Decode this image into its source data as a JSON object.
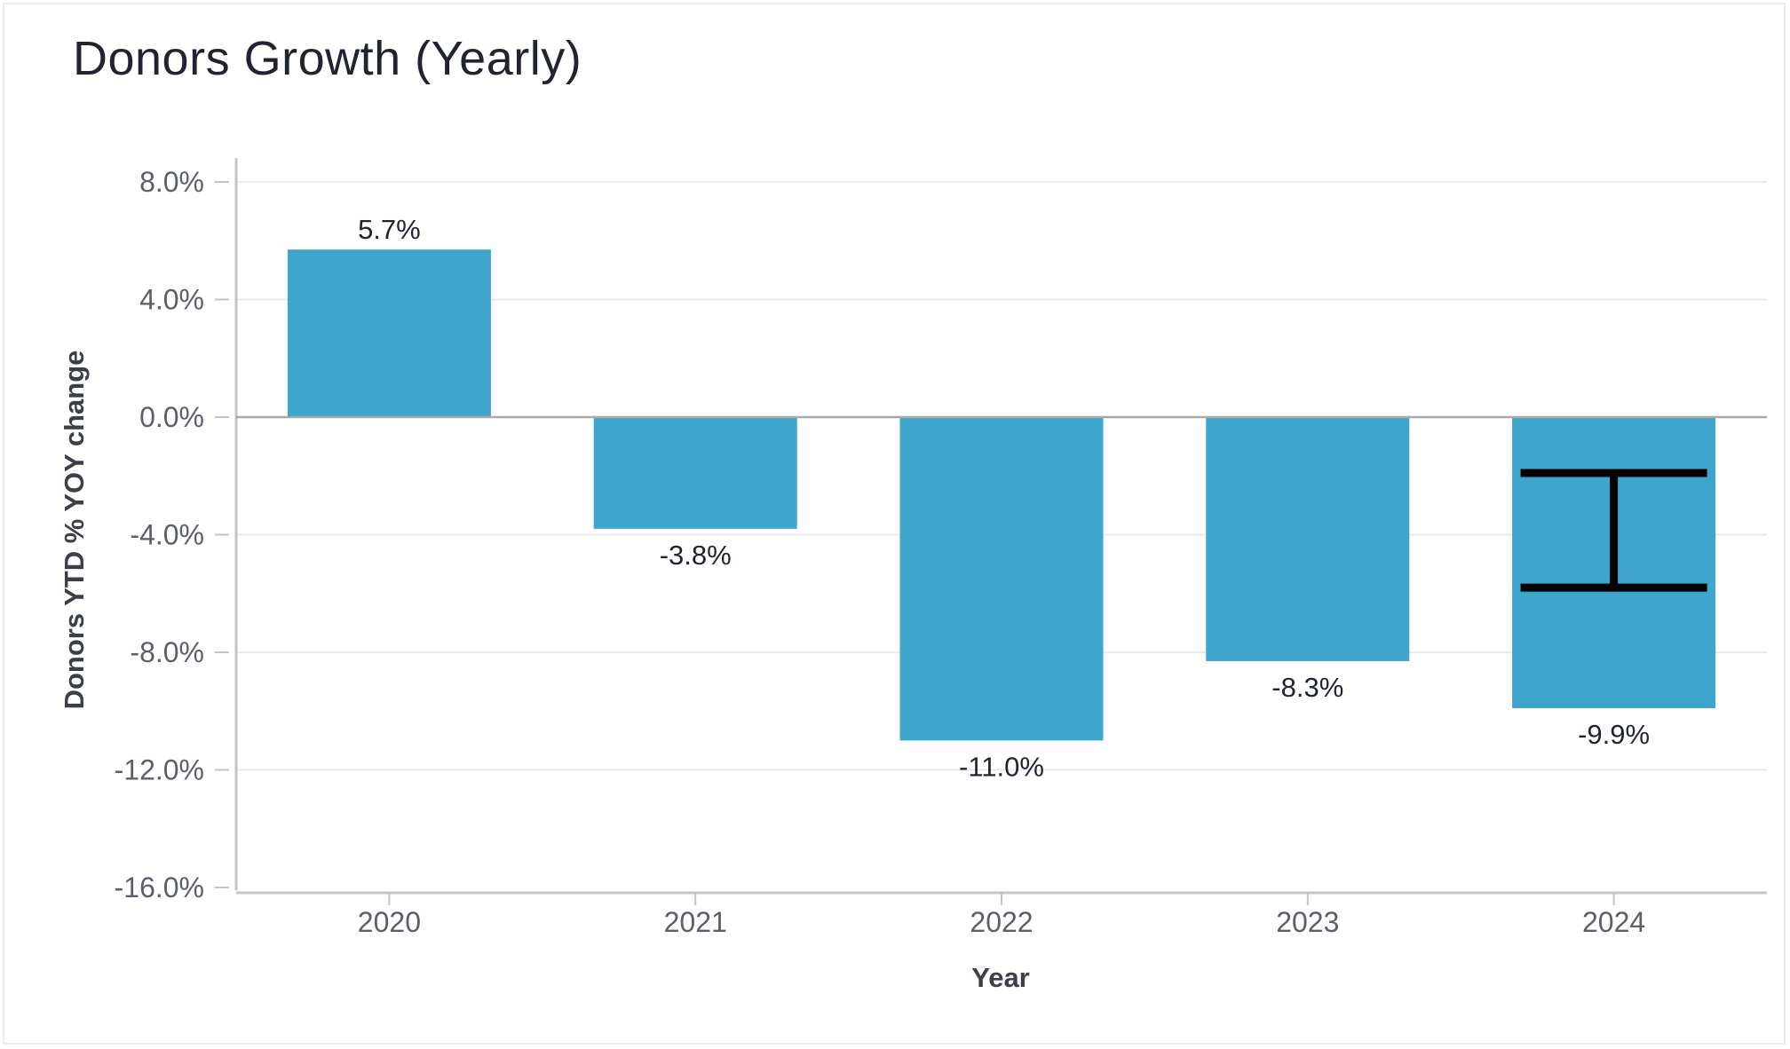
{
  "chart_data": {
    "type": "bar",
    "title": "Donors Growth (Yearly)",
    "xlabel": "Year",
    "ylabel": "Donors YTD % YOY change",
    "categories": [
      "2020",
      "2021",
      "2022",
      "2023",
      "2024"
    ],
    "values": [
      5.7,
      -3.8,
      -11.0,
      -8.3,
      -9.9
    ],
    "value_labels": [
      "5.7%",
      "-3.8%",
      "-11.0%",
      "-8.3%",
      "-9.9%"
    ],
    "ylim": [
      -16,
      8
    ],
    "yticks": [
      8,
      4,
      0,
      -4,
      -8,
      -12,
      -16
    ],
    "ytick_labels": [
      "8.0%",
      "4.0%",
      "0.0%",
      "-4.0%",
      "-8.0%",
      "-12.0%",
      "-16.0%"
    ],
    "error_bar": {
      "category": "2024",
      "low": -5.8,
      "high": -1.9
    },
    "grid": true,
    "legend": "none",
    "colors": {
      "bar": "#3ea6cd",
      "grid": "#e9e9e9",
      "zero_line": "#a9a9a9",
      "axis": "#c4c4c4",
      "error_bar": "#000000"
    }
  }
}
